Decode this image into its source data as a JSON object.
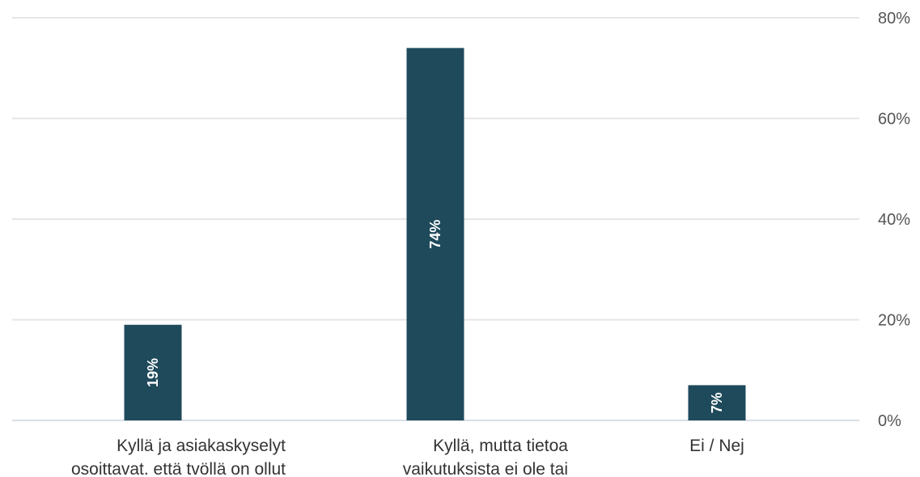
{
  "chart_data": {
    "type": "bar",
    "categories": [
      [
        "Kyllä ja asiakaskyselyt",
        "osoittavat. että tvöllä on ollut"
      ],
      [
        "Kyllä, mutta tietoa",
        "vaikutuksista ei ole tai"
      ],
      [
        "Ei / Nej"
      ]
    ],
    "values": [
      19,
      74,
      7
    ],
    "data_labels": [
      "19%",
      "74%",
      "7%"
    ],
    "y_ticks": [
      0,
      20,
      40,
      60,
      80
    ],
    "y_tick_labels": [
      "0%",
      "20%",
      "40%",
      "60%",
      "80%"
    ],
    "ylim": [
      0,
      80
    ],
    "y_axis_position": "right",
    "grid": true,
    "legend": "none",
    "bar_color": "#1f4a5c"
  }
}
